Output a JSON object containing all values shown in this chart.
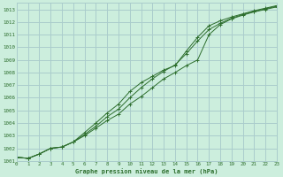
{
  "title": "Graphe pression niveau de la mer (hPa)",
  "background_color": "#cceedd",
  "grid_color": "#aacccc",
  "line_color": "#2d6e2d",
  "xlim": [
    0,
    23
  ],
  "ylim": [
    1001.0,
    1013.5
  ],
  "yticks": [
    1001,
    1002,
    1003,
    1004,
    1005,
    1006,
    1007,
    1008,
    1009,
    1010,
    1011,
    1012,
    1013
  ],
  "xticks": [
    0,
    1,
    2,
    3,
    4,
    5,
    6,
    7,
    8,
    9,
    10,
    11,
    12,
    13,
    14,
    15,
    16,
    17,
    18,
    19,
    20,
    21,
    22,
    23
  ],
  "series1_x": [
    0,
    1,
    2,
    3,
    4,
    5,
    6,
    7,
    8,
    9,
    10,
    11,
    12,
    13,
    14,
    15,
    16,
    17,
    18,
    19,
    20,
    21,
    22,
    23
  ],
  "series1_y": [
    1001.3,
    1001.2,
    1001.55,
    1002.0,
    1002.1,
    1002.5,
    1003.0,
    1003.6,
    1004.2,
    1004.7,
    1005.5,
    1006.1,
    1006.8,
    1007.5,
    1008.0,
    1008.55,
    1009.0,
    1011.0,
    1011.8,
    1012.25,
    1012.55,
    1012.8,
    1013.0,
    1013.2
  ],
  "series2_x": [
    0,
    1,
    2,
    3,
    4,
    5,
    6,
    7,
    8,
    9,
    10,
    11,
    12,
    13,
    14,
    15,
    16,
    17,
    18,
    19,
    20,
    21,
    22,
    23
  ],
  "series2_y": [
    1001.3,
    1001.2,
    1001.55,
    1002.0,
    1002.1,
    1002.5,
    1003.1,
    1003.75,
    1004.5,
    1005.1,
    1006.0,
    1006.8,
    1007.5,
    1008.1,
    1008.6,
    1009.5,
    1010.5,
    1011.4,
    1011.9,
    1012.3,
    1012.6,
    1012.85,
    1013.05,
    1013.25
  ],
  "series3_x": [
    0,
    1,
    2,
    3,
    4,
    5,
    6,
    7,
    8,
    9,
    10,
    11,
    12,
    13,
    14,
    15,
    16,
    17,
    18,
    19,
    20,
    21,
    22,
    23
  ],
  "series3_y": [
    1001.3,
    1001.2,
    1001.55,
    1002.0,
    1002.1,
    1002.5,
    1003.25,
    1004.0,
    1004.8,
    1005.5,
    1006.5,
    1007.2,
    1007.7,
    1008.2,
    1008.55,
    1009.7,
    1010.8,
    1011.7,
    1012.1,
    1012.4,
    1012.65,
    1012.9,
    1013.1,
    1013.3
  ]
}
